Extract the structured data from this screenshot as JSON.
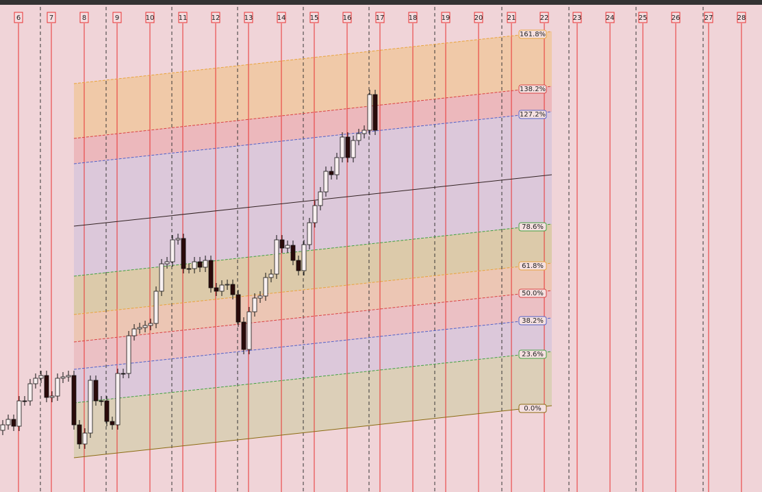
{
  "days": [
    "6",
    "7",
    "8",
    "9",
    "10",
    "11",
    "12",
    "13",
    "14",
    "15",
    "16",
    "17",
    "18",
    "19",
    "20",
    "21",
    "22",
    "23",
    "24",
    "25",
    "26",
    "27",
    "28"
  ],
  "levels": [
    "161.8%",
    "138.2%",
    "127.2%",
    "78.6%",
    "61.8%",
    "50.0%",
    "38.2%",
    "23.6%",
    "0.0%"
  ]
}
